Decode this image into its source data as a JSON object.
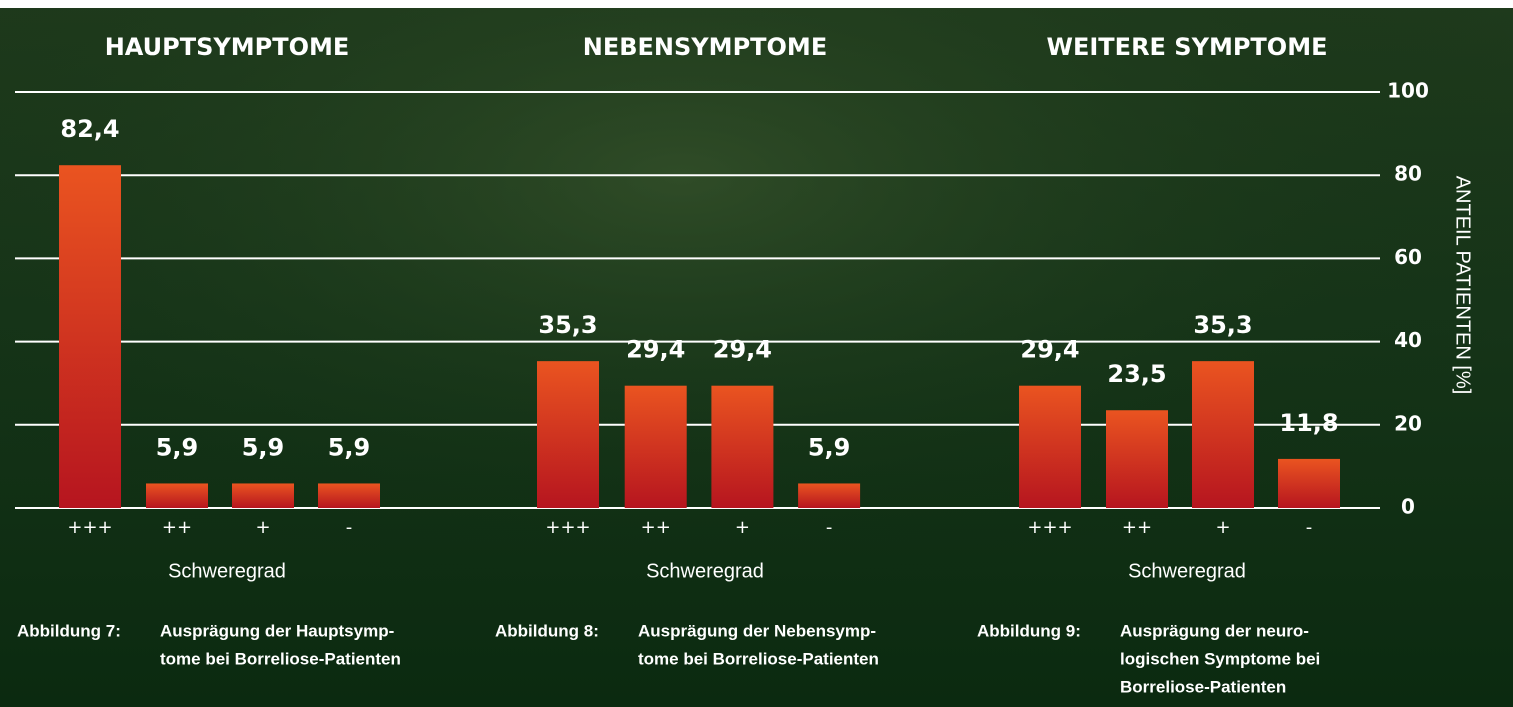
{
  "chart_data": [
    {
      "type": "bar",
      "title": "HAUPTSYMPTOME",
      "categories": [
        "+++",
        "++",
        "+",
        "-"
      ],
      "values": [
        82.4,
        5.9,
        5.9,
        5.9
      ],
      "value_labels": [
        "82,4",
        "5,9",
        "5,9",
        "5,9"
      ],
      "xlabel": "Schweregrad",
      "ylim": [
        0,
        100
      ],
      "caption_label": "Abbildung 7:",
      "caption": [
        "Ausprägung der Hauptsymp-",
        "tome bei Borreliose-Patienten"
      ],
      "color": "#e4481f"
    },
    {
      "type": "bar",
      "title": "NEBENSYMPTOME",
      "categories": [
        "+++",
        "++",
        "+",
        "-"
      ],
      "values": [
        35.3,
        29.4,
        29.4,
        5.9
      ],
      "value_labels": [
        "35,3",
        "29,4",
        "29,4",
        "5,9"
      ],
      "xlabel": "Schweregrad",
      "ylim": [
        0,
        100
      ],
      "caption_label": "Abbildung 8:",
      "caption": [
        "Ausprägung der Nebensymp-",
        "tome bei Borreliose-Patienten"
      ],
      "color": "#e4481f"
    },
    {
      "type": "bar",
      "title": "WEITERE SYMPTOME",
      "categories": [
        "+++",
        "++",
        "+",
        "-"
      ],
      "values": [
        29.4,
        23.5,
        35.3,
        11.8
      ],
      "value_labels": [
        "29,4",
        "23,5",
        "35,3",
        "11,8"
      ],
      "xlabel": "Schweregrad",
      "ylim": [
        0,
        100
      ],
      "yticks": [
        0,
        20,
        40,
        60,
        80,
        100
      ],
      "ylabel": "ANTEIL PATIENTEN [%]",
      "grid": true,
      "caption_label": "Abbildung 9:",
      "caption": [
        "Ausprägung der neuro-",
        "logischen Symptome bei",
        "Borreliose-Patienten"
      ],
      "color": "#e4481f"
    }
  ]
}
